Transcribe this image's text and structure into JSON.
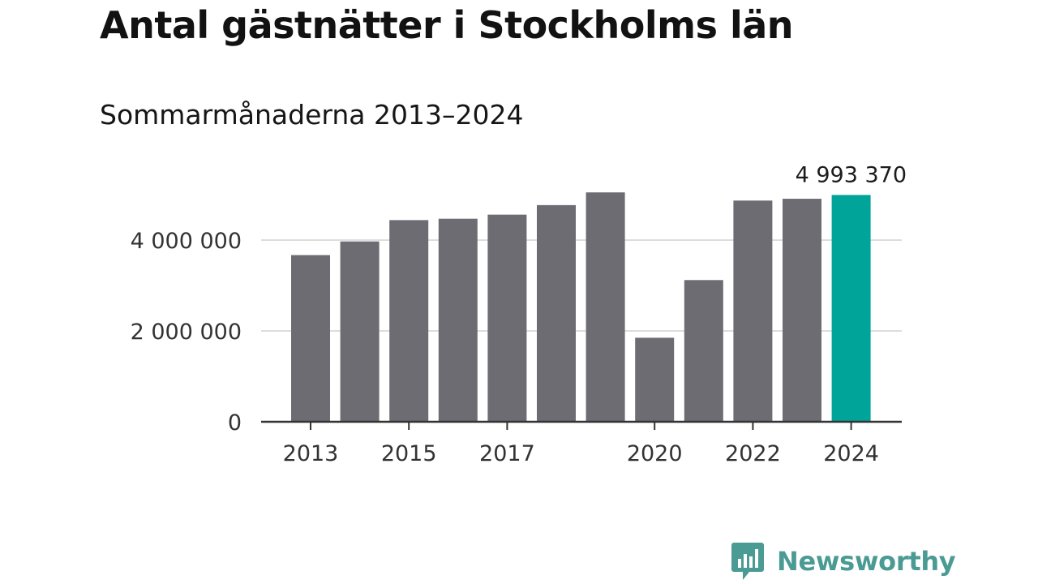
{
  "title": "Antal gästnätter i Stockholms län",
  "subtitle": "Sommarmånaderna 2013–2024",
  "brand": {
    "name": "Newsworthy",
    "icon": "bar-chart-speech-bubble-icon",
    "color": "#4a9b93"
  },
  "colors": {
    "bar": "#6d6c73",
    "highlight": "#00a499",
    "grid": "#dddddd",
    "axis": "#333333"
  },
  "chart_data": {
    "type": "bar",
    "title": "Antal gästnätter i Stockholms län",
    "subtitle": "Sommarmånaderna 2013–2024",
    "xlabel": "",
    "ylabel": "",
    "categories": [
      "2013",
      "2014",
      "2015",
      "2016",
      "2017",
      "2018",
      "2019",
      "2020",
      "2021",
      "2022",
      "2023",
      "2024"
    ],
    "values": [
      3670000,
      3970000,
      4440000,
      4470000,
      4560000,
      4770000,
      5050000,
      1850000,
      3120000,
      4870000,
      4910000,
      4993370
    ],
    "highlight_index": 11,
    "ylim": [
      0,
      5400000
    ],
    "yticks": [
      0,
      2000000,
      4000000
    ],
    "ytick_labels": [
      "0",
      "2 000 000",
      "4 000 000"
    ],
    "xtick_labels": [
      "2013",
      "2015",
      "2017",
      "2020",
      "2022",
      "2024"
    ],
    "annotation": {
      "category": "2024",
      "text": "4 993 370"
    },
    "grid": true,
    "legend": "none"
  }
}
